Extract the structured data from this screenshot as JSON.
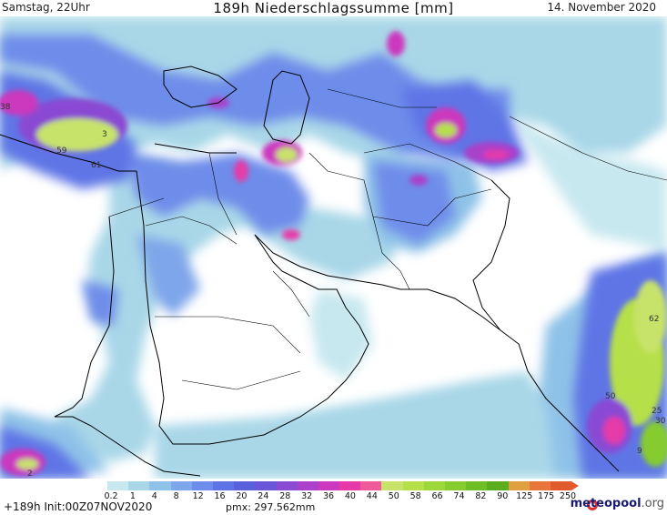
{
  "header": {
    "left": "Samstag, 22Uhr",
    "title": "189h Niederschlagssumme [mm]",
    "date": "14. November 2020"
  },
  "legend": {
    "ticks": [
      "0.2",
      "1",
      "4",
      "8",
      "12",
      "16",
      "20",
      "24",
      "28",
      "32",
      "36",
      "40",
      "44",
      "50",
      "58",
      "66",
      "74",
      "82",
      "90",
      "125",
      "175",
      "250"
    ],
    "colors": [
      "#c8e8f0",
      "#a9d7e8",
      "#8fc2e8",
      "#7ea6ea",
      "#6e8cea",
      "#5e74e6",
      "#5a60dc",
      "#6a56d8",
      "#8a4ad2",
      "#ab40ca",
      "#cc38be",
      "#e63aa8",
      "#f05a9a",
      "#c7e36a",
      "#b6e04a",
      "#9cd83a",
      "#86cc2e",
      "#6fbe26",
      "#5aae1e",
      "#e0a040",
      "#e8763a",
      "#e05a2b"
    ]
  },
  "footer": {
    "left": "+189h Init:00Z07NOV2020",
    "pmx": "pmx: 297.562mm",
    "logo": "meteopool",
    "logo_suffix": ".org"
  },
  "map_labels": {
    "l1": "38",
    "l2": "59",
    "l3": "61",
    "l4": "3",
    "l5": "62",
    "l6": "50",
    "l7": "25",
    "l8": "30",
    "l9": "9",
    "l10": "2"
  },
  "colors": {
    "sea": "#ffffff",
    "border": "#000000",
    "bg": "#ffffff"
  }
}
